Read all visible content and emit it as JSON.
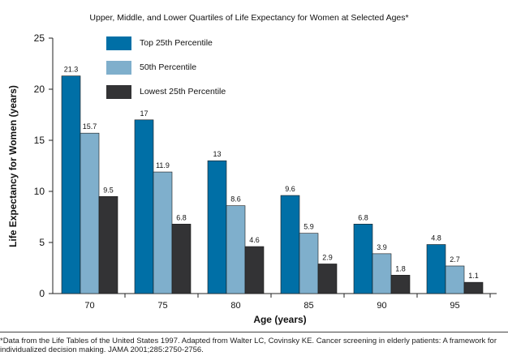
{
  "chart_data": {
    "type": "bar",
    "title": "Upper, Middle, and Lower Quartiles of Life Expectancy for Women at Selected Ages*",
    "xlabel": "Age (years)",
    "ylabel": "Life Expectancy for Women (years)",
    "ylim": [
      0,
      25
    ],
    "yticks": [
      0,
      5,
      10,
      15,
      20,
      25
    ],
    "categories": [
      "70",
      "75",
      "80",
      "85",
      "90",
      "95"
    ],
    "series": [
      {
        "name": "Top 25th Percentile",
        "color": "#006fa6",
        "values": [
          21.3,
          17,
          13,
          9.6,
          6.8,
          4.8
        ]
      },
      {
        "name": "50th Percentile",
        "color": "#7fafcc",
        "values": [
          15.7,
          11.9,
          8.6,
          5.9,
          3.9,
          2.7
        ]
      },
      {
        "name": "Lowest 25th Percentile",
        "color": "#333335",
        "values": [
          9.5,
          6.8,
          4.6,
          2.9,
          1.8,
          1.1
        ]
      }
    ],
    "value_labels": [
      [
        "21.3",
        "17",
        "13",
        "9.6",
        "6.8",
        "4.8"
      ],
      [
        "15.7",
        "11.9",
        "8.6",
        "5.9",
        "3.9",
        "2.7"
      ],
      [
        "9.5",
        "6.8",
        "4.6",
        "2.9",
        "1.8",
        "1.1"
      ]
    ],
    "footnote": "*Data from the Life Tables of the United States 1997. Adapted from Walter LC, Covinsky KE. Cancer screening in elderly patients: A framework for individualized decision making. JAMA 2001;285:2750-2756."
  }
}
